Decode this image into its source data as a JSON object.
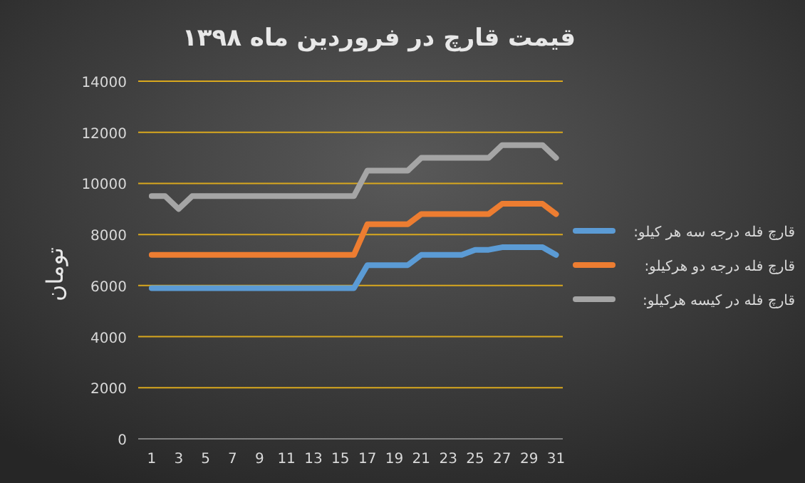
{
  "chart_data": {
    "type": "line",
    "title": "قیمت قارچ در فروردین ماه ۱۳۹۸",
    "ylabel": "تومان",
    "x": [
      1,
      2,
      3,
      4,
      5,
      6,
      7,
      8,
      9,
      10,
      11,
      12,
      13,
      14,
      15,
      16,
      17,
      18,
      19,
      20,
      21,
      22,
      23,
      24,
      25,
      26,
      27,
      28,
      29,
      30,
      31
    ],
    "series": [
      {
        "name": "قارچ فله درجه سه هر کیلو:",
        "color": "#5b9bd5",
        "values": [
          5900,
          5900,
          5900,
          5900,
          5900,
          5900,
          5900,
          5900,
          5900,
          5900,
          5900,
          5900,
          5900,
          5900,
          5900,
          5900,
          6800,
          6800,
          6800,
          6800,
          7200,
          7200,
          7200,
          7200,
          7400,
          7400,
          7500,
          7500,
          7500,
          7500,
          7200
        ]
      },
      {
        "name": "قارچ فله درجه دو هرکیلو:",
        "color": "#ed7d31",
        "values": [
          7200,
          7200,
          7200,
          7200,
          7200,
          7200,
          7200,
          7200,
          7200,
          7200,
          7200,
          7200,
          7200,
          7200,
          7200,
          7200,
          8400,
          8400,
          8400,
          8400,
          8800,
          8800,
          8800,
          8800,
          8800,
          8800,
          9200,
          9200,
          9200,
          9200,
          8800
        ]
      },
      {
        "name": "قارچ فله در کیسه هرکیلو:",
        "color": "#a5a5a5",
        "values": [
          9500,
          9500,
          9000,
          9500,
          9500,
          9500,
          9500,
          9500,
          9500,
          9500,
          9500,
          9500,
          9500,
          9500,
          9500,
          9500,
          10500,
          10500,
          10500,
          10500,
          11000,
          11000,
          11000,
          11000,
          11000,
          11000,
          11500,
          11500,
          11500,
          11500,
          11000
        ]
      }
    ],
    "xlim": [
      0,
      31.5
    ],
    "xticks": [
      1,
      3,
      5,
      7,
      9,
      11,
      13,
      15,
      17,
      19,
      21,
      23,
      25,
      27,
      29,
      31
    ],
    "ylim": [
      0,
      14000
    ],
    "yticks": [
      0,
      2000,
      4000,
      6000,
      8000,
      10000,
      12000,
      14000
    ],
    "grid": "y",
    "legend": "right",
    "marker": "none",
    "line_style": "solid"
  }
}
